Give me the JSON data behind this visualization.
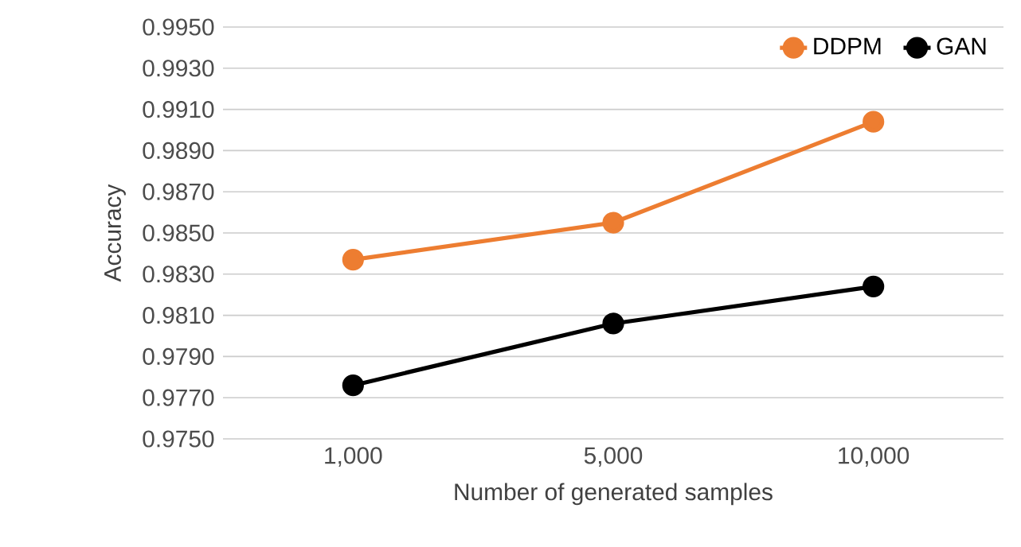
{
  "chart_data": {
    "type": "line",
    "xlabel": "Number of generated samples",
    "ylabel": "Accuracy",
    "categories": [
      "1,000",
      "5,000",
      "10,000"
    ],
    "series": [
      {
        "name": "DDPM",
        "color": "#ed7d31",
        "values": [
          0.9837,
          0.9855,
          0.9904
        ]
      },
      {
        "name": "GAN",
        "color": "#000000",
        "values": [
          0.9776,
          0.9806,
          0.9824
        ]
      }
    ],
    "ylim": [
      0.975,
      0.995
    ],
    "yticks": [
      {
        "value": 0.975,
        "label": "0.9750"
      },
      {
        "value": 0.977,
        "label": "0.9770"
      },
      {
        "value": 0.979,
        "label": "0.9790"
      },
      {
        "value": 0.981,
        "label": "0.9810"
      },
      {
        "value": 0.983,
        "label": "0.9830"
      },
      {
        "value": 0.985,
        "label": "0.9850"
      },
      {
        "value": 0.987,
        "label": "0.9870"
      },
      {
        "value": 0.989,
        "label": "0.9890"
      },
      {
        "value": 0.991,
        "label": "0.9910"
      },
      {
        "value": 0.993,
        "label": "0.9930"
      },
      {
        "value": 0.995,
        "label": "0.9950"
      }
    ],
    "grid": "y",
    "legend": "top right",
    "marker": "circle",
    "line_style": "solid"
  }
}
